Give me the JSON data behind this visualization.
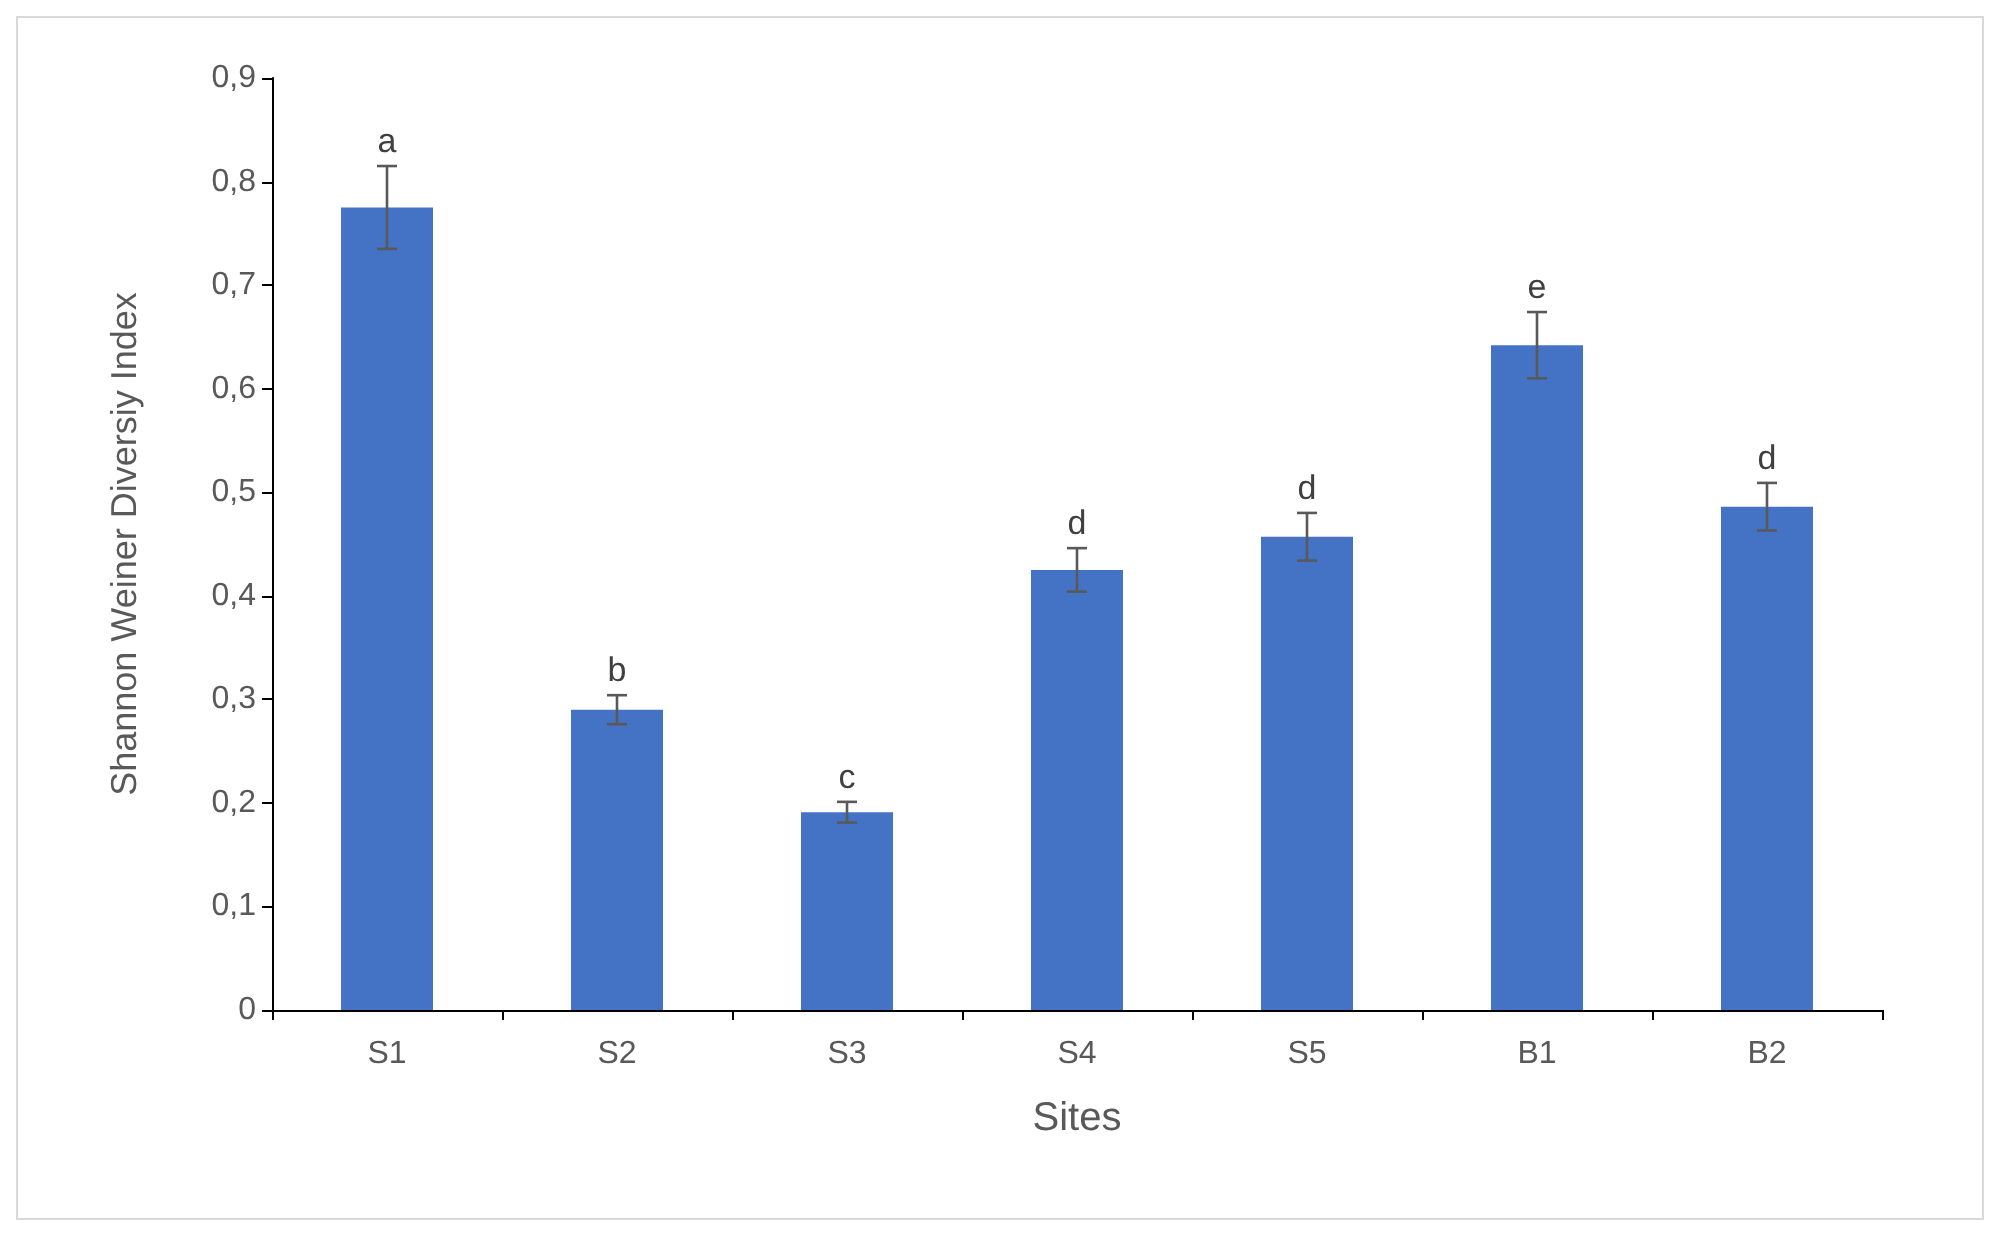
{
  "chart_data": {
    "type": "bar",
    "xlabel": "Sites",
    "ylabel": "Shannon Weiner Diversiy Index",
    "categories": [
      "S1",
      "S2",
      "S3",
      "S4",
      "S5",
      "B1",
      "B2"
    ],
    "values": [
      0.775,
      0.29,
      0.191,
      0.425,
      0.457,
      0.642,
      0.486
    ],
    "errors": [
      0.04,
      0.014,
      0.01,
      0.021,
      0.023,
      0.032,
      0.023
    ],
    "color": "#4472c4",
    "ylim": [
      0,
      0.9
    ],
    "yticks": [
      {
        "value": 0,
        "label": "0"
      },
      {
        "value": 0.1,
        "label": "0,1"
      },
      {
        "value": 0.2,
        "label": "0,2"
      },
      {
        "value": 0.3,
        "label": "0,3"
      },
      {
        "value": 0.4,
        "label": "0,4"
      },
      {
        "value": 0.5,
        "label": "0,5"
      },
      {
        "value": 0.6,
        "label": "0,6"
      },
      {
        "value": 0.7,
        "label": "0,7"
      },
      {
        "value": 0.8,
        "label": "0,8"
      },
      {
        "value": 0.9,
        "label": "0,9"
      }
    ],
    "grid": false,
    "annotations": [
      {
        "text": "a",
        "x": "S1",
        "y": 0.815
      },
      {
        "text": "b",
        "x": "S2",
        "y": 0.304
      },
      {
        "text": "c",
        "x": "S3",
        "y": 0.201
      },
      {
        "text": "d",
        "x": "S4",
        "y": 0.446
      },
      {
        "text": "d",
        "x": "S5",
        "y": 0.48
      },
      {
        "text": "e",
        "x": "B1",
        "y": 0.674
      },
      {
        "text": "d",
        "x": "B2",
        "y": 0.509
      }
    ]
  }
}
